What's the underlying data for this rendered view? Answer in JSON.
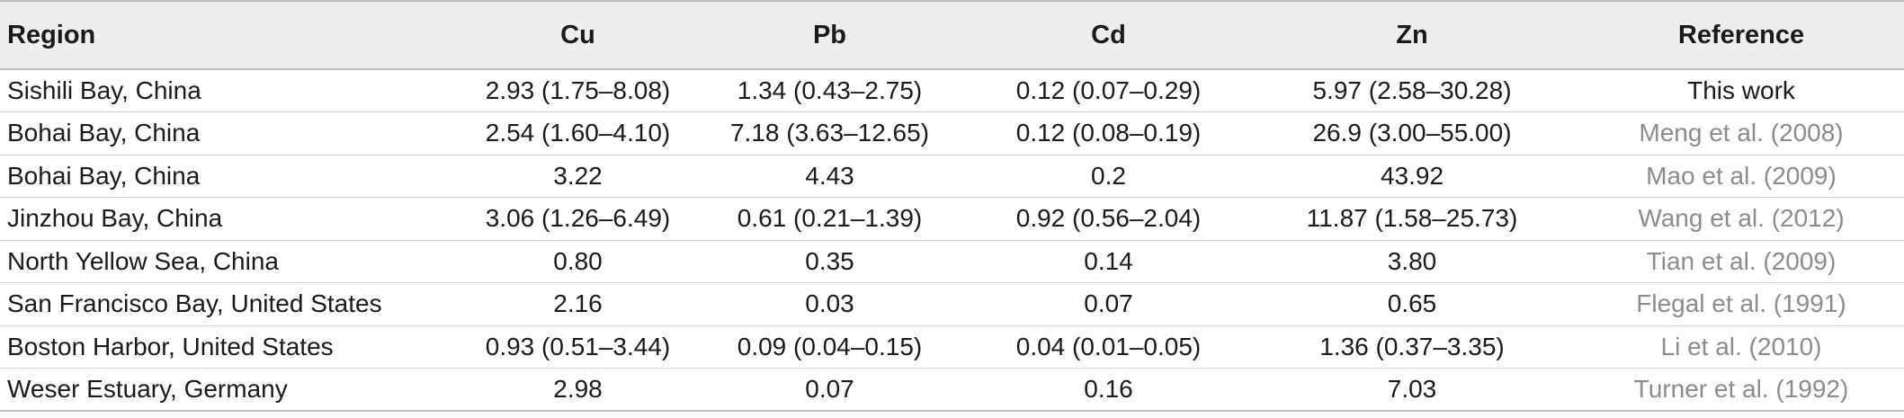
{
  "table": {
    "headers": {
      "region": "Region",
      "cu": "Cu",
      "pb": "Pb",
      "cd": "Cd",
      "zn": "Zn",
      "reference": "Reference"
    },
    "rows": [
      {
        "region": "Sishili Bay, China",
        "cu": "2.93 (1.75–8.08)",
        "pb": "1.34 (0.43–2.75)",
        "cd": "0.12 (0.07–0.29)",
        "zn": "5.97 (2.58–30.28)",
        "reference": "This work"
      },
      {
        "region": "Bohai Bay, China",
        "cu": "2.54 (1.60–4.10)",
        "pb": "7.18 (3.63–12.65)",
        "cd": "0.12 (0.08–0.19)",
        "zn": "26.9 (3.00–55.00)",
        "reference": "Meng et al. (2008)"
      },
      {
        "region": "Bohai Bay, China",
        "cu": "3.22",
        "pb": "4.43",
        "cd": "0.2",
        "zn": "43.92",
        "reference": "Mao et al. (2009)"
      },
      {
        "region": "Jinzhou Bay, China",
        "cu": "3.06 (1.26–6.49)",
        "pb": "0.61 (0.21–1.39)",
        "cd": "0.92 (0.56–2.04)",
        "zn": "11.87 (1.58–25.73)",
        "reference": "Wang et al. (2012)"
      },
      {
        "region": "North Yellow Sea, China",
        "cu": "0.80",
        "pb": "0.35",
        "cd": "0.14",
        "zn": "3.80",
        "reference": "Tian et al. (2009)"
      },
      {
        "region": "San Francisco Bay, United States",
        "cu": "2.16",
        "pb": "0.03",
        "cd": "0.07",
        "zn": "0.65",
        "reference": "Flegal et al. (1991)"
      },
      {
        "region": "Boston Harbor, United States",
        "cu": "0.93 (0.51–3.44)",
        "pb": "0.09 (0.04–0.15)",
        "cd": "0.04 (0.01–0.05)",
        "zn": "1.36 (0.37–3.35)",
        "reference": "Li et al. (2010)"
      },
      {
        "region": "Weser Estuary, Germany",
        "cu": "2.98",
        "pb": "0.07",
        "cd": "0.16",
        "zn": "7.03",
        "reference": "Turner et al. (1992)"
      }
    ]
  }
}
